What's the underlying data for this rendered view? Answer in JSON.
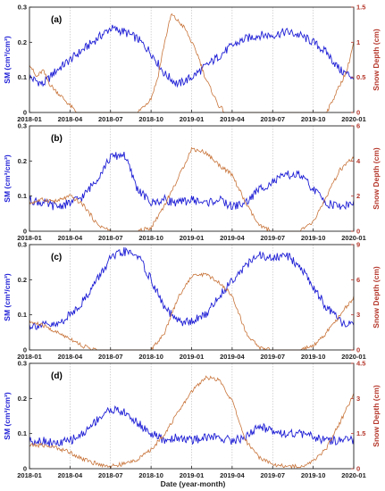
{
  "figure": {
    "xlabel": "Date (year-month)",
    "colors": {
      "sm": "#1f1fd6",
      "snow": "#c8743a",
      "axis_right": "#b5372b",
      "grid": "#b8b8b8"
    }
  },
  "chart_data": [
    {
      "type": "line",
      "panel_label": "(a)",
      "ylabel_left": "SM (cm³/cm³)",
      "ylabel_right": "Snow Depth (cm)",
      "ylim_left": [
        0,
        0.3
      ],
      "ylim_right": [
        0,
        1.5
      ],
      "yticks_left": [
        "0",
        "0.1",
        "0.2",
        "0.3"
      ],
      "yticks_right": [
        "0",
        "0.5",
        "1",
        "1.5"
      ],
      "xticks": [
        "2018-01",
        "2018-04",
        "2018-07",
        "2018-10",
        "2019-01",
        "2019-04",
        "2019-07",
        "2019-10",
        "2020-01"
      ],
      "grid": true,
      "series": [
        {
          "axis": "left",
          "color": "#1f1fd6",
          "x": [
            0,
            0.5,
            1,
            1.5,
            2,
            3,
            4,
            5,
            6,
            7,
            8,
            9,
            10,
            11,
            12,
            13,
            14,
            15,
            16,
            17,
            18,
            19,
            20,
            21,
            22,
            23,
            24
          ],
          "values": [
            0.1,
            0.09,
            0.08,
            0.1,
            0.12,
            0.15,
            0.18,
            0.21,
            0.24,
            0.23,
            0.21,
            0.17,
            0.11,
            0.08,
            0.1,
            0.13,
            0.16,
            0.19,
            0.21,
            0.22,
            0.22,
            0.23,
            0.22,
            0.2,
            0.17,
            0.12,
            0.1
          ]
        },
        {
          "axis": "right",
          "color": "#c8743a",
          "x": [
            0,
            0.5,
            1,
            1.5,
            2,
            2.5,
            3,
            3.5,
            8,
            8.5,
            9,
            9.5,
            10,
            10.5,
            11,
            11.5,
            12,
            12.5,
            13,
            13.5,
            14,
            14.5,
            15,
            21,
            22,
            22.5,
            23,
            23.5,
            24
          ],
          "values": [
            0.7,
            0.5,
            0.6,
            0.4,
            0.3,
            0.2,
            0.1,
            0,
            0,
            0.1,
            0.2,
            0.5,
            1.0,
            1.4,
            1.3,
            1.2,
            1.0,
            0.8,
            0.5,
            0.3,
            0.1,
            0,
            0,
            0,
            0,
            0.2,
            0.4,
            0.6,
            1.0
          ]
        }
      ]
    },
    {
      "type": "line",
      "panel_label": "(b)",
      "ylabel_left": "SM (cm³/cm³)",
      "ylabel_right": "Snow Depth (cm)",
      "ylim_left": [
        0,
        0.3
      ],
      "ylim_right": [
        0,
        6
      ],
      "yticks_left": [
        "0",
        "0.1",
        "0.2",
        "0.3"
      ],
      "yticks_right": [
        "0",
        "2",
        "4",
        "6"
      ],
      "xticks": [
        "2018-01",
        "2018-04",
        "2018-07",
        "2018-10",
        "2019-01",
        "2019-04",
        "2019-07",
        "2019-10",
        "2020-01"
      ],
      "grid": true,
      "series": [
        {
          "axis": "left",
          "color": "#1f1fd6",
          "x": [
            0,
            1,
            2,
            3,
            4,
            5,
            6,
            7,
            8,
            9,
            10,
            11,
            12,
            13,
            14,
            15,
            16,
            17,
            18,
            19,
            20,
            21,
            22,
            23,
            24
          ],
          "values": [
            0.09,
            0.08,
            0.07,
            0.08,
            0.1,
            0.15,
            0.21,
            0.22,
            0.12,
            0.08,
            0.09,
            0.08,
            0.09,
            0.08,
            0.09,
            0.07,
            0.08,
            0.12,
            0.14,
            0.16,
            0.16,
            0.12,
            0.08,
            0.07,
            0.08
          ]
        },
        {
          "axis": "right",
          "color": "#c8743a",
          "x": [
            0,
            1,
            2,
            3,
            4,
            5,
            6,
            7,
            8,
            9,
            10,
            11,
            12,
            13,
            14,
            15,
            16,
            17,
            18,
            19,
            20,
            21,
            22,
            23,
            24
          ],
          "values": [
            1.6,
            1.8,
            1.7,
            2.0,
            1.5,
            0.4,
            0,
            0,
            0,
            0.2,
            1.5,
            3.0,
            4.7,
            4.5,
            3.8,
            3.2,
            1.6,
            0.3,
            0,
            0,
            0,
            0.5,
            2.0,
            3.5,
            4.2
          ]
        }
      ]
    },
    {
      "type": "line",
      "panel_label": "(c)",
      "ylabel_left": "SM (cm³/cm³)",
      "ylabel_right": "Snow Depth (cm)",
      "ylim_left": [
        0,
        0.3
      ],
      "ylim_right": [
        0,
        9
      ],
      "yticks_left": [
        "0",
        "0.1",
        "0.2",
        "0.3"
      ],
      "yticks_right": [
        "0",
        "3",
        "6",
        "9"
      ],
      "xticks": [
        "2018-01",
        "2018-04",
        "2018-07",
        "2018-10",
        "2019-01",
        "2019-04",
        "2019-07",
        "2019-10",
        "2020-01"
      ],
      "grid": true,
      "series": [
        {
          "axis": "left",
          "color": "#1f1fd6",
          "x": [
            0,
            1,
            2,
            3,
            4,
            5,
            6,
            7,
            8,
            9,
            10,
            11,
            12,
            13,
            14,
            15,
            16,
            17,
            18,
            19,
            20,
            21,
            22,
            23,
            24
          ],
          "values": [
            0.07,
            0.07,
            0.07,
            0.1,
            0.14,
            0.2,
            0.26,
            0.28,
            0.27,
            0.2,
            0.12,
            0.08,
            0.08,
            0.1,
            0.15,
            0.2,
            0.24,
            0.27,
            0.26,
            0.27,
            0.24,
            0.18,
            0.12,
            0.08,
            0.07
          ]
        },
        {
          "axis": "right",
          "color": "#c8743a",
          "x": [
            0,
            1,
            2,
            3,
            4,
            5,
            6,
            7,
            8,
            9,
            10,
            11,
            12,
            13,
            14,
            15,
            16,
            17,
            18,
            19,
            20,
            21,
            22,
            23,
            24
          ],
          "values": [
            2.4,
            2.1,
            1.5,
            1.0,
            0.3,
            0,
            0,
            0,
            0,
            0,
            1.5,
            4.5,
            6.3,
            6.5,
            5.8,
            4.7,
            1.5,
            0.2,
            0,
            0,
            0,
            0.3,
            1.5,
            3.0,
            4.5
          ]
        }
      ]
    },
    {
      "type": "line",
      "panel_label": "(d)",
      "ylabel_left": "SM (cm³/cm³)",
      "ylabel_right": "Snow Depth (cm)",
      "ylim_left": [
        0,
        0.3
      ],
      "ylim_right": [
        0,
        4.5
      ],
      "yticks_left": [
        "0",
        "0.1",
        "0.2",
        "0.3"
      ],
      "yticks_right": [
        "0",
        "1.5",
        "3",
        "4.5"
      ],
      "xticks": [
        "2018-01",
        "2018-04",
        "2018-07",
        "2018-10",
        "2019-01",
        "2019-04",
        "2019-07",
        "2019-10",
        "2020-01"
      ],
      "grid": true,
      "series": [
        {
          "axis": "left",
          "color": "#1f1fd6",
          "x": [
            0,
            1,
            2,
            3,
            4,
            5,
            6,
            7,
            8,
            9,
            10,
            11,
            12,
            13,
            14,
            15,
            16,
            17,
            18,
            19,
            20,
            21,
            22,
            23,
            24
          ],
          "values": [
            0.08,
            0.08,
            0.07,
            0.08,
            0.1,
            0.14,
            0.17,
            0.16,
            0.13,
            0.1,
            0.08,
            0.09,
            0.08,
            0.09,
            0.09,
            0.08,
            0.09,
            0.12,
            0.11,
            0.1,
            0.1,
            0.09,
            0.08,
            0.08,
            0.08
          ]
        },
        {
          "axis": "right",
          "color": "#c8743a",
          "x": [
            0,
            1,
            2,
            3,
            4,
            5,
            6,
            7,
            8,
            9,
            10,
            11,
            12,
            13,
            14,
            15,
            16,
            17,
            18,
            19,
            20,
            21,
            22,
            23,
            24
          ],
          "values": [
            1.0,
            1.0,
            0.9,
            0.7,
            0.4,
            0.2,
            0.1,
            0.2,
            0.4,
            0.8,
            1.5,
            2.4,
            3.3,
            3.9,
            3.8,
            2.9,
            1.2,
            0.5,
            0.2,
            0.1,
            0.1,
            0.3,
            0.9,
            2.0,
            3.2
          ]
        }
      ]
    }
  ]
}
